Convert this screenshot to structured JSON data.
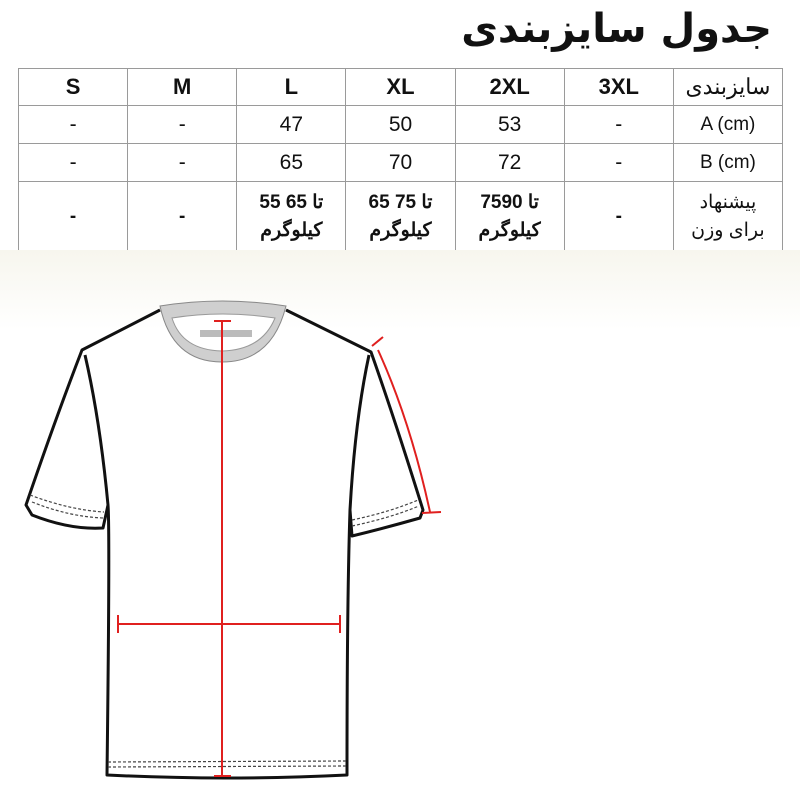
{
  "title": "جدول سایزبندی",
  "table": {
    "header": {
      "label": "سایزبندی",
      "sizes": [
        "3XL",
        "2XL",
        "XL",
        "L",
        "M",
        "S"
      ]
    },
    "rows": [
      {
        "label": "A (cm)",
        "values": [
          "-",
          "53",
          "50",
          "47",
          "-",
          "-"
        ]
      },
      {
        "label": "B (cm)",
        "values": [
          "-",
          "72",
          "70",
          "65",
          "-",
          "-"
        ]
      },
      {
        "label_line1": "پیشنهاد",
        "label_line2": "برای وزن",
        "values": [
          {
            "range": "-",
            "unit": ""
          },
          {
            "range": "75تا 90",
            "unit": "کیلوگرم"
          },
          {
            "range": "65 تا 75",
            "unit": "کیلوگرم"
          },
          {
            "range": "55 تا 65",
            "unit": "کیلوگرم"
          },
          {
            "range": "-",
            "unit": ""
          },
          {
            "range": "-",
            "unit": ""
          }
        ]
      }
    ]
  },
  "colors": {
    "measure_line": "#e0201f",
    "outline": "#111111",
    "grid": "#9a9a9a"
  }
}
